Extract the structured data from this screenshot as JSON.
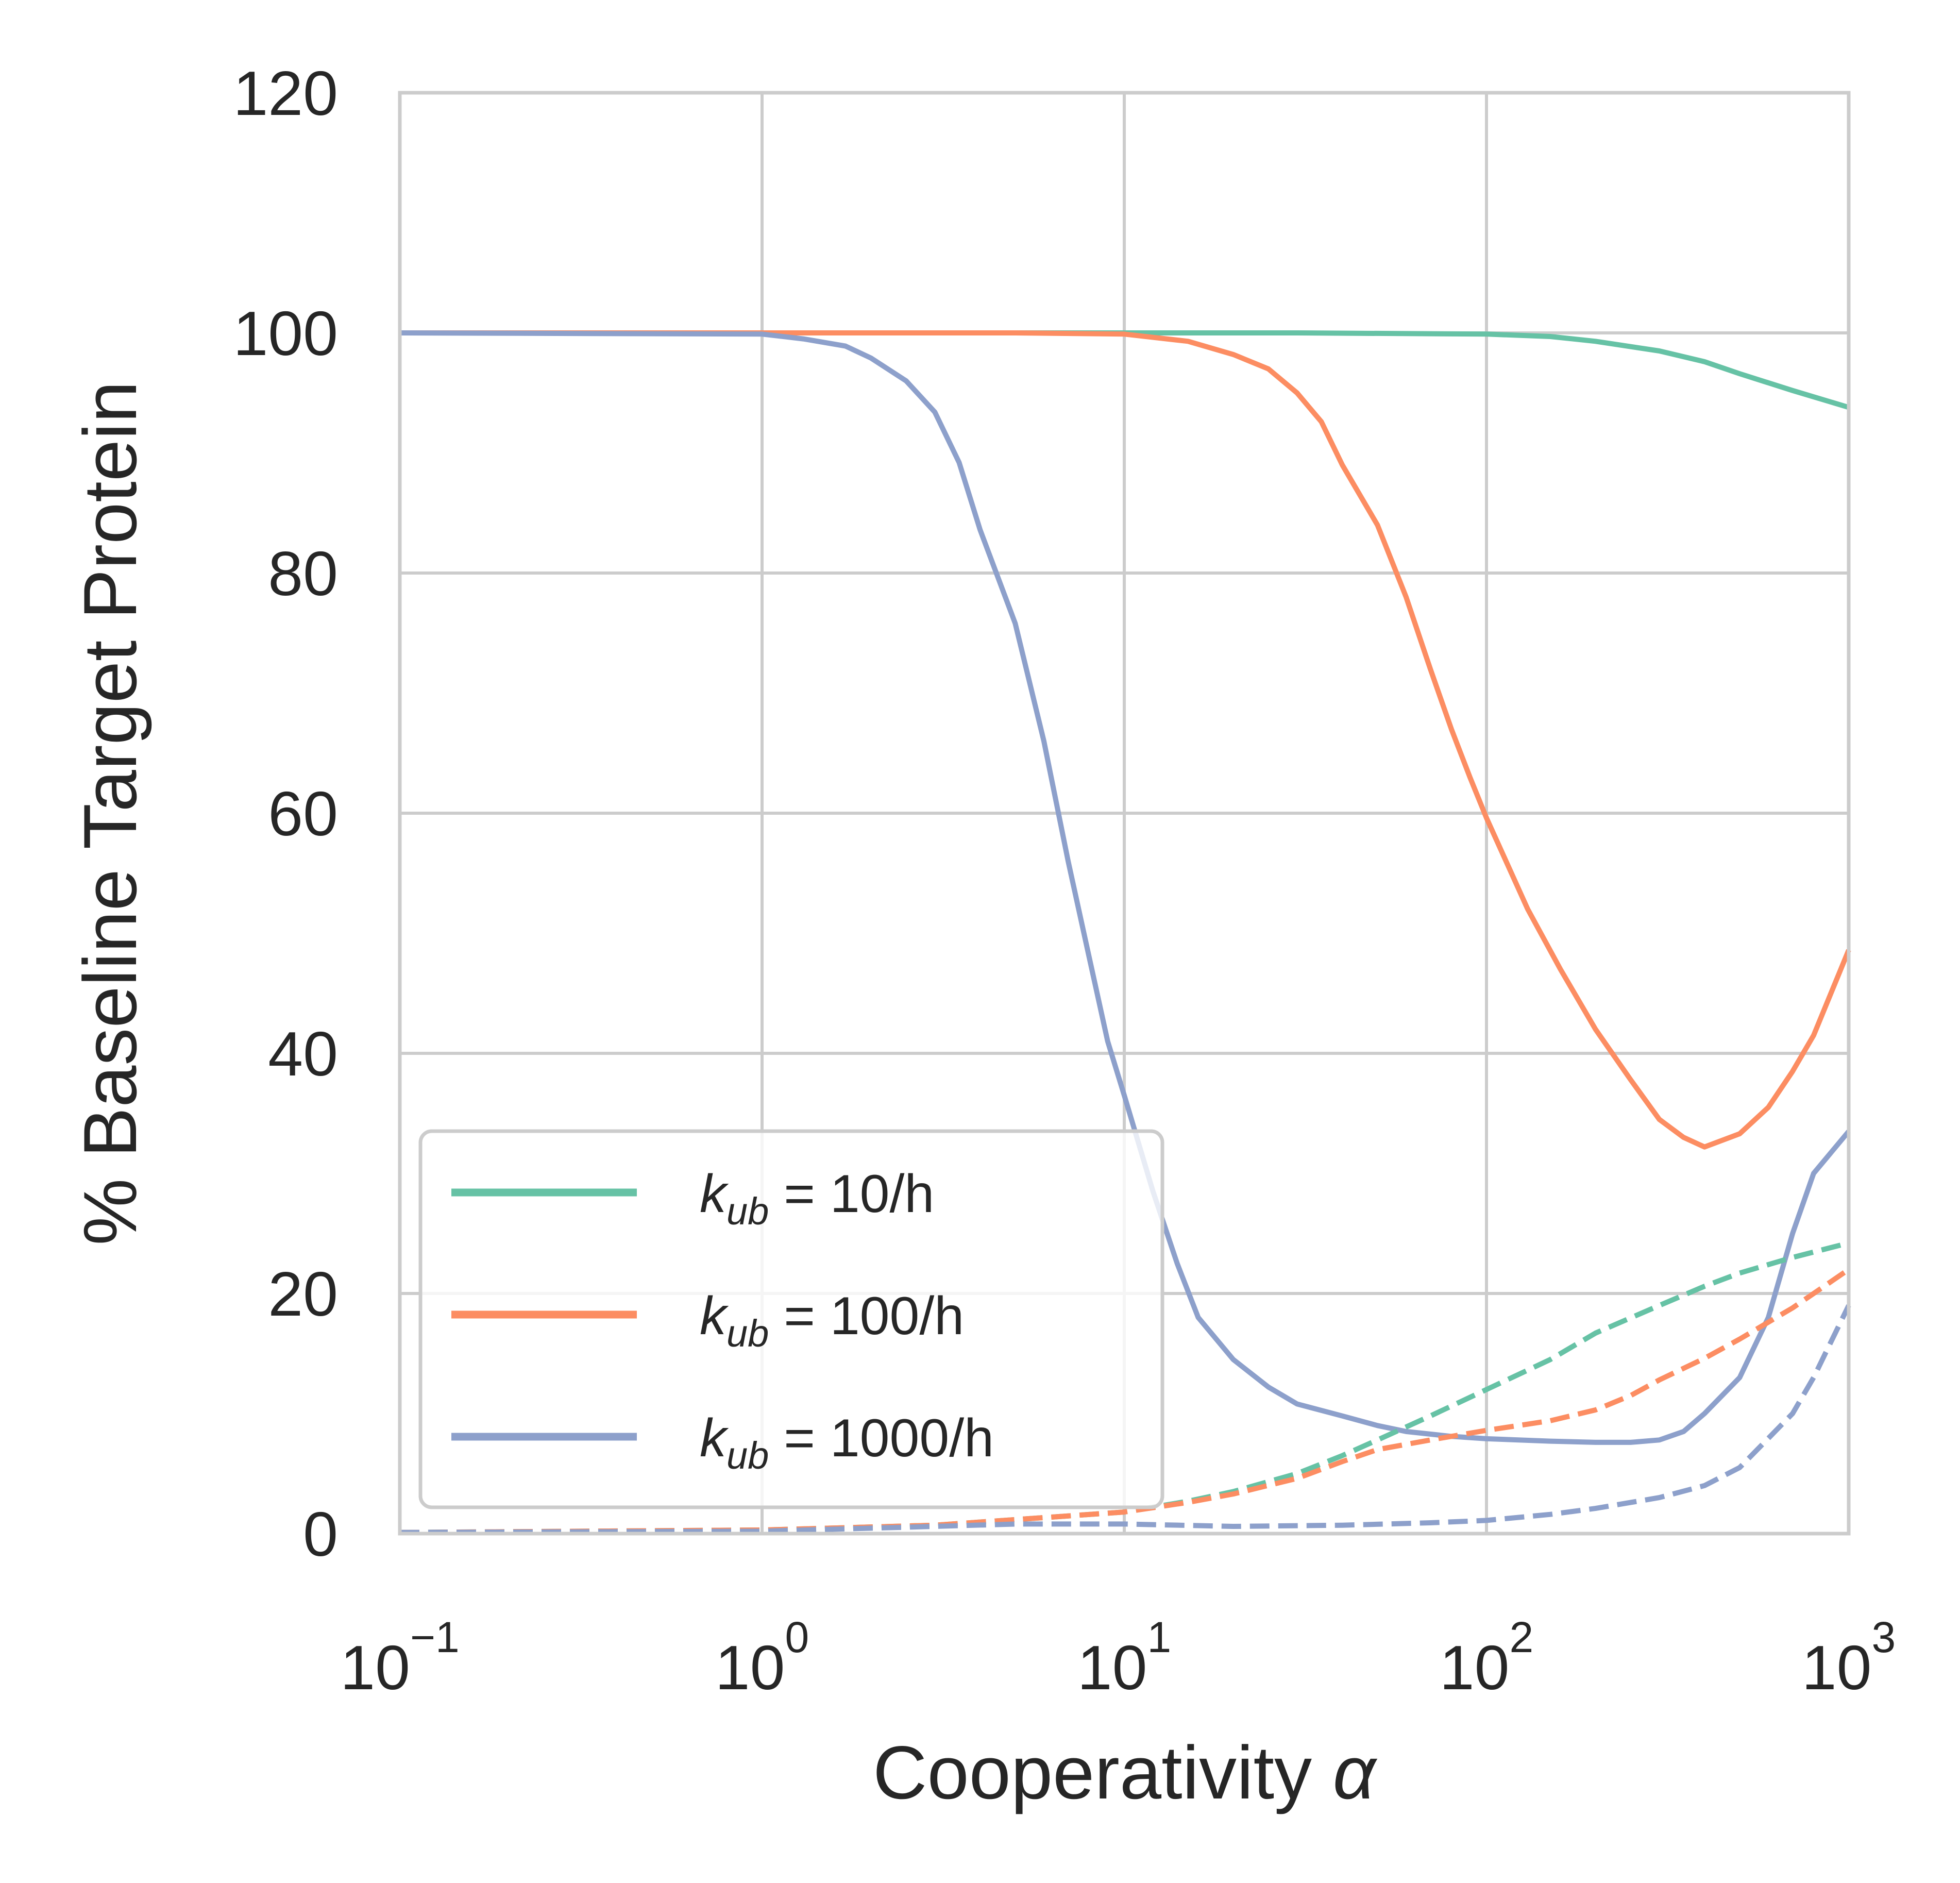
{
  "chart_data": {
    "type": "line",
    "title": "",
    "xlabel": {
      "text": "Cooperativity ",
      "symbol": "α"
    },
    "ylabel": "% Baseline Target Protein",
    "x_scale": "log",
    "xlim": [
      0.1,
      1000
    ],
    "ylim": [
      0,
      120
    ],
    "grid": true,
    "legend_placement": "lower-left",
    "x_ticks": [
      {
        "value": 0.1,
        "base": "10",
        "exp": "−1"
      },
      {
        "value": 1,
        "base": "10",
        "exp": "0"
      },
      {
        "value": 10,
        "base": "10",
        "exp": "1"
      },
      {
        "value": 100,
        "base": "10",
        "exp": "2"
      },
      {
        "value": 1000,
        "base": "10",
        "exp": "3"
      }
    ],
    "y_ticks": [
      {
        "value": 0,
        "label": "0"
      },
      {
        "value": 20,
        "label": "20"
      },
      {
        "value": 40,
        "label": "40"
      },
      {
        "value": 60,
        "label": "60"
      },
      {
        "value": 80,
        "label": "80"
      },
      {
        "value": 100,
        "label": "100"
      },
      {
        "value": 120,
        "label": "120"
      }
    ],
    "series": [
      {
        "name": "k_ub = 10/h",
        "legend": {
          "k": "k",
          "sub": "ub",
          "rest": " = 10/h"
        },
        "color": "#66c2a5",
        "style": "solid",
        "points": [
          [
            0.1,
            100
          ],
          [
            1,
            100
          ],
          [
            10,
            100
          ],
          [
            30,
            100
          ],
          [
            100,
            99.9
          ],
          [
            150,
            99.7
          ],
          [
            200,
            99.3
          ],
          [
            300,
            98.5
          ],
          [
            400,
            97.6
          ],
          [
            500,
            96.6
          ],
          [
            700,
            95.2
          ],
          [
            1000,
            93.8
          ]
        ]
      },
      {
        "name": "k_ub = 100/h",
        "legend": {
          "k": "k",
          "sub": "ub",
          "rest": " = 100/h"
        },
        "color": "#fc8d62",
        "style": "solid",
        "points": [
          [
            0.1,
            100
          ],
          [
            1,
            100
          ],
          [
            5,
            100
          ],
          [
            10,
            99.9
          ],
          [
            15,
            99.3
          ],
          [
            20,
            98.2
          ],
          [
            25,
            97
          ],
          [
            30,
            95
          ],
          [
            35,
            92.6
          ],
          [
            40,
            89
          ],
          [
            50,
            84
          ],
          [
            60,
            78
          ],
          [
            70,
            72
          ],
          [
            80,
            67
          ],
          [
            90,
            63
          ],
          [
            100,
            59.6
          ],
          [
            130,
            52
          ],
          [
            160,
            47
          ],
          [
            200,
            42
          ],
          [
            250,
            37.8
          ],
          [
            300,
            34.5
          ],
          [
            350,
            33
          ],
          [
            400,
            32.2
          ],
          [
            500,
            33.3
          ],
          [
            600,
            35.5
          ],
          [
            700,
            38.5
          ],
          [
            800,
            41.5
          ],
          [
            1000,
            48.6
          ]
        ]
      },
      {
        "name": "k_ub = 1000/h",
        "legend": {
          "k": "k",
          "sub": "ub",
          "rest": " = 1000/h"
        },
        "color": "#8da0cb",
        "style": "solid",
        "points": [
          [
            0.1,
            100
          ],
          [
            1,
            99.9
          ],
          [
            1.3,
            99.5
          ],
          [
            1.7,
            98.9
          ],
          [
            2,
            97.9
          ],
          [
            2.5,
            96
          ],
          [
            3,
            93.4
          ],
          [
            3.5,
            89.2
          ],
          [
            4,
            83.6
          ],
          [
            5,
            75.8
          ],
          [
            6,
            66
          ],
          [
            7,
            56
          ],
          [
            8,
            48
          ],
          [
            9,
            41
          ],
          [
            10,
            36.5
          ],
          [
            12,
            28.5
          ],
          [
            14,
            22.5
          ],
          [
            16,
            18
          ],
          [
            20,
            14.5
          ],
          [
            25,
            12.2
          ],
          [
            30,
            10.8
          ],
          [
            40,
            9.8
          ],
          [
            50,
            9
          ],
          [
            60,
            8.5
          ],
          [
            80,
            8.1
          ],
          [
            100,
            7.9
          ],
          [
            150,
            7.7
          ],
          [
            200,
            7.6
          ],
          [
            250,
            7.6
          ],
          [
            300,
            7.8
          ],
          [
            350,
            8.5
          ],
          [
            400,
            10
          ],
          [
            500,
            13
          ],
          [
            600,
            18
          ],
          [
            700,
            25
          ],
          [
            800,
            30
          ],
          [
            1000,
            33.5
          ]
        ]
      },
      {
        "name": "",
        "color": "#66c2a5",
        "style": "dashed",
        "points": [
          [
            0.1,
            0.1
          ],
          [
            1,
            0.3
          ],
          [
            3,
            0.7
          ],
          [
            10,
            1.8
          ],
          [
            15,
            2.7
          ],
          [
            20,
            3.5
          ],
          [
            30,
            5
          ],
          [
            40,
            6.5
          ],
          [
            50,
            7.8
          ],
          [
            70,
            9.8
          ],
          [
            100,
            12
          ],
          [
            150,
            14.5
          ],
          [
            200,
            16.7
          ],
          [
            300,
            19
          ],
          [
            400,
            20.6
          ],
          [
            500,
            21.7
          ],
          [
            700,
            23
          ],
          [
            1000,
            24.2
          ]
        ]
      },
      {
        "name": "",
        "color": "#fc8d62",
        "style": "dashed",
        "points": [
          [
            0.1,
            0.1
          ],
          [
            1,
            0.3
          ],
          [
            3,
            0.7
          ],
          [
            10,
            1.8
          ],
          [
            15,
            2.6
          ],
          [
            20,
            3.3
          ],
          [
            30,
            4.6
          ],
          [
            40,
            6
          ],
          [
            50,
            7
          ],
          [
            70,
            7.8
          ],
          [
            100,
            8.6
          ],
          [
            150,
            9.4
          ],
          [
            200,
            10.3
          ],
          [
            250,
            11.5
          ],
          [
            300,
            12.8
          ],
          [
            400,
            14.6
          ],
          [
            500,
            16.2
          ],
          [
            700,
            18.8
          ],
          [
            1000,
            22
          ]
        ]
      },
      {
        "name": "",
        "color": "#8da0cb",
        "style": "dashed",
        "points": [
          [
            0.1,
            0.1
          ],
          [
            1,
            0.2
          ],
          [
            3,
            0.6
          ],
          [
            5,
            0.8
          ],
          [
            10,
            0.8
          ],
          [
            20,
            0.6
          ],
          [
            40,
            0.7
          ],
          [
            70,
            0.9
          ],
          [
            100,
            1.1
          ],
          [
            150,
            1.6
          ],
          [
            200,
            2.1
          ],
          [
            300,
            3
          ],
          [
            400,
            4
          ],
          [
            500,
            5.5
          ],
          [
            700,
            10
          ],
          [
            800,
            13
          ],
          [
            1000,
            19
          ]
        ]
      }
    ]
  }
}
